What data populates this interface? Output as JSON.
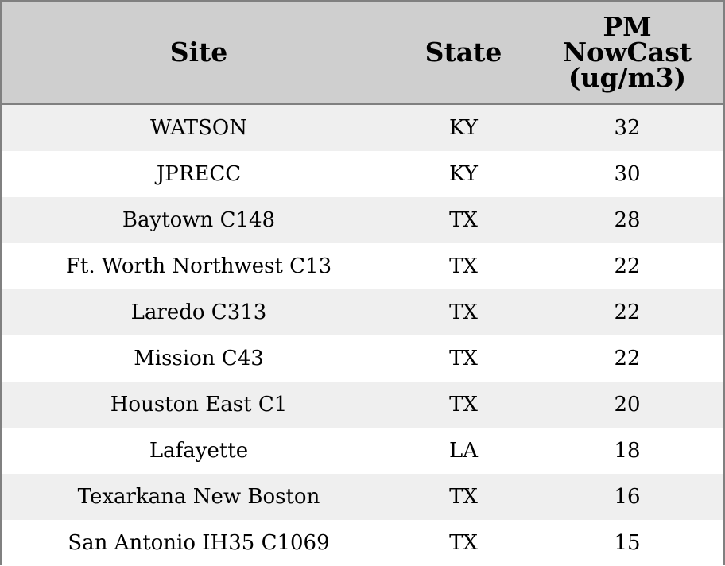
{
  "table": {
    "headers": {
      "site": "Site",
      "state": "State",
      "pm": "PM\nNowCast\n(ug/m3)"
    },
    "rows": [
      {
        "site": "WATSON",
        "state": "KY",
        "pm": "32"
      },
      {
        "site": "JPRECC",
        "state": "KY",
        "pm": "30"
      },
      {
        "site": "Baytown C148",
        "state": "TX",
        "pm": "28"
      },
      {
        "site": "Ft. Worth Northwest C13",
        "state": "TX",
        "pm": "22"
      },
      {
        "site": "Laredo C313",
        "state": "TX",
        "pm": "22"
      },
      {
        "site": "Mission C43",
        "state": "TX",
        "pm": "22"
      },
      {
        "site": "Houston East C1",
        "state": "TX",
        "pm": "20"
      },
      {
        "site": "Lafayette",
        "state": "LA",
        "pm": "18"
      },
      {
        "site": "Texarkana New Boston",
        "state": "TX",
        "pm": "16"
      },
      {
        "site": "San Antonio IH35 C1069",
        "state": "TX",
        "pm": "15"
      }
    ],
    "colors": {
      "header_bg": "#cfcfcf",
      "row_stripe": "#efefef",
      "row_plain": "#ffffff",
      "border": "#808080"
    }
  }
}
